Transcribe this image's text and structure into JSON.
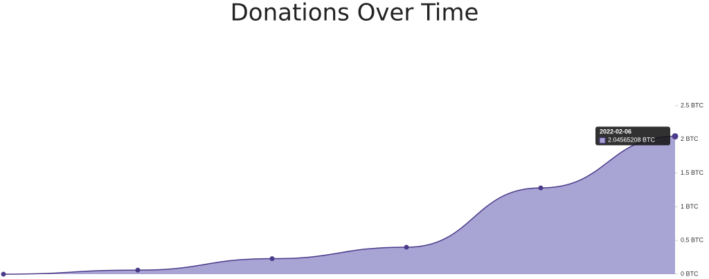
{
  "chart_data": {
    "type": "area",
    "title": "Donations Over Time",
    "categories": [
      null,
      null,
      null,
      null,
      null,
      null
    ],
    "series": [
      {
        "name": null,
        "color": "#4b3a8a",
        "fill": "#a8a4d4",
        "values": [
          0,
          0.06,
          0.23,
          0.4,
          1.28,
          2.04565208
        ]
      }
    ],
    "ylim": [
      0,
      2.5
    ],
    "yticks": [
      {
        "value": 0,
        "label": "0 BTC"
      },
      {
        "value": 0.5,
        "label": "0.5 BTC"
      },
      {
        "value": 1,
        "label": "1 BTC"
      },
      {
        "value": 1.5,
        "label": "1.5 BTC"
      },
      {
        "value": 2,
        "label": "2 BTC"
      },
      {
        "value": 2.5,
        "label": "2.5 BTC"
      }
    ],
    "tooltip": {
      "title": "2022-02-06",
      "index": 5,
      "label": "2.04565208 BTC"
    }
  }
}
